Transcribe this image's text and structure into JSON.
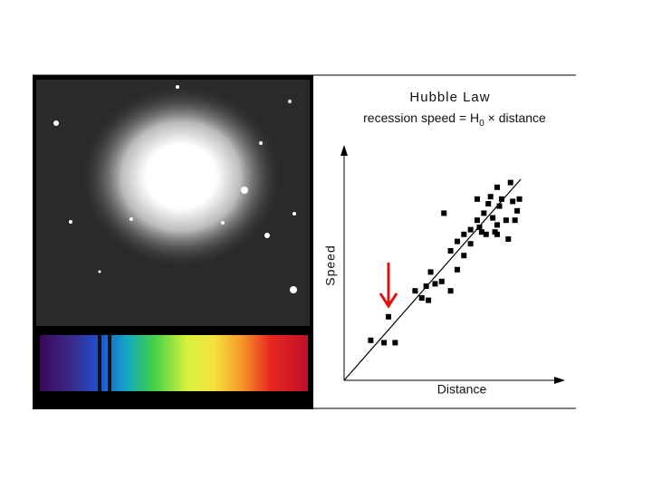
{
  "chart_data": {
    "type": "scatter",
    "title": "Hubble Law",
    "subtitle": [
      "recession speed = H",
      "0",
      " × distance"
    ],
    "x_label": "Distance",
    "y_label": "Speed",
    "xlim": [
      0,
      10
    ],
    "ylim": [
      0,
      10
    ],
    "color": "#000000",
    "x": [
      1.2,
      1.8,
      2.3,
      2.0,
      3.2,
      3.5,
      3.7,
      3.9,
      4.1,
      4.4,
      3.8,
      4.8,
      4.5,
      4.8,
      5.1,
      5.1,
      5.4,
      5.4,
      5.7,
      5.7,
      6.0,
      6.0,
      6.1,
      6.3,
      6.4,
      6.5,
      6.6,
      6.7,
      6.8,
      6.9,
      6.9,
      7.0,
      7.1,
      7.3,
      7.4,
      7.5,
      7.6,
      7.7,
      7.8,
      7.9,
      6.2,
      6.9
    ],
    "values": [
      1.7,
      1.6,
      1.6,
      2.7,
      3.8,
      3.5,
      4.0,
      4.6,
      4.1,
      4.2,
      3.4,
      3.8,
      7.1,
      5.5,
      4.7,
      5.9,
      5.3,
      6.2,
      5.8,
      6.4,
      7.7,
      6.8,
      6.5,
      7.1,
      6.2,
      7.5,
      7.8,
      6.9,
      6.3,
      6.2,
      8.2,
      7.4,
      7.7,
      6.8,
      6.0,
      8.4,
      7.6,
      6.8,
      7.2,
      7.7,
      6.3,
      6.6
    ]
  }
}
